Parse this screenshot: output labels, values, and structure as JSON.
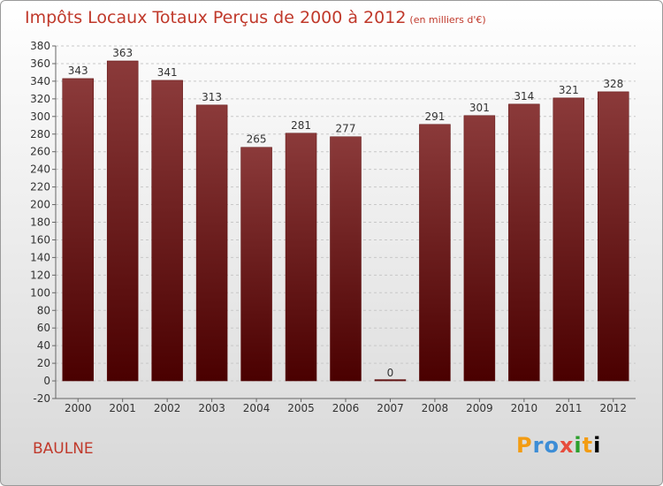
{
  "chart_data": {
    "type": "bar",
    "title": "Impôts Locaux Totaux Perçus de 2000 à 2012",
    "subtitle": "(en milliers d'€)",
    "categories": [
      "2000",
      "2001",
      "2002",
      "2003",
      "2004",
      "2005",
      "2006",
      "2007",
      "2008",
      "2009",
      "2010",
      "2011",
      "2012"
    ],
    "values": [
      343,
      363,
      341,
      313,
      265,
      281,
      277,
      0,
      291,
      301,
      314,
      321,
      328
    ],
    "ylim": [
      -20,
      380
    ],
    "ytick_step": 20,
    "xlabel": "",
    "ylabel": "",
    "grid": true,
    "bar_color_top": "#8b3a3a",
    "bar_color_bottom": "#4a0000"
  },
  "footer": {
    "town": "BAULNE",
    "logo_letters": [
      "P",
      "r",
      "o",
      "x",
      "i",
      "t",
      "i"
    ]
  }
}
